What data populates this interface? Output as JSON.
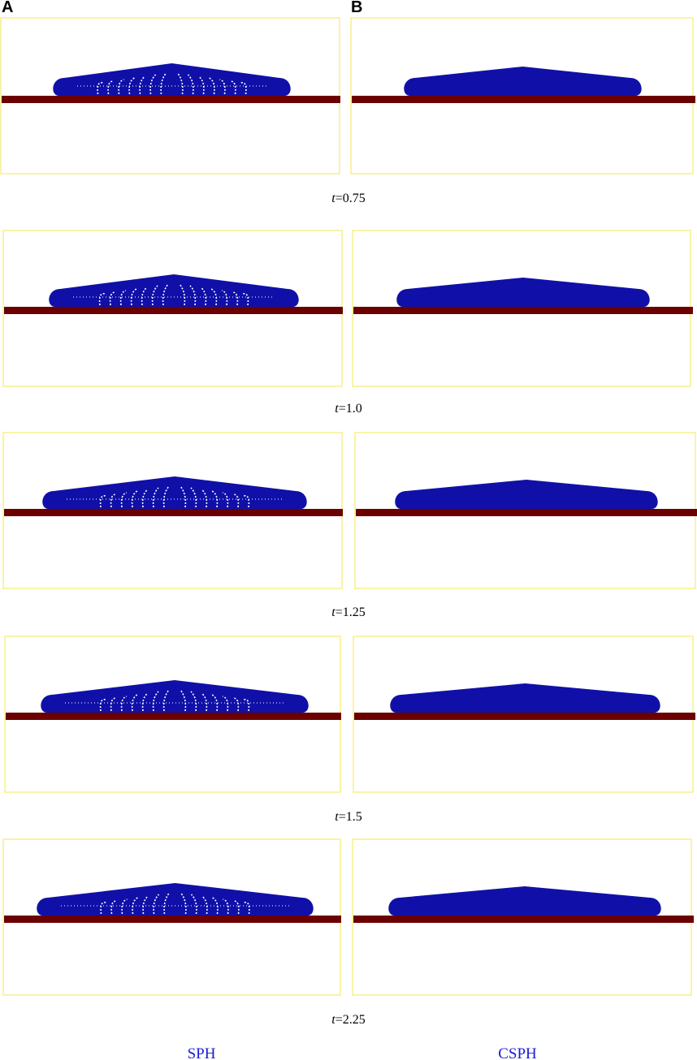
{
  "panels": [
    {
      "letter": "A",
      "method": "SPH"
    },
    {
      "letter": "B",
      "method": "CSPH"
    }
  ],
  "rows": [
    {
      "time": {
        "symbol": "t",
        "value": "=0.75"
      }
    },
    {
      "time": {
        "symbol": "t",
        "value": "=1.0"
      }
    },
    {
      "time": {
        "symbol": "t",
        "value": "=1.25"
      }
    },
    {
      "time": {
        "symbol": "t",
        "value": "=1.5"
      }
    },
    {
      "time": {
        "symbol": "t",
        "value": "=2.25"
      }
    }
  ]
}
